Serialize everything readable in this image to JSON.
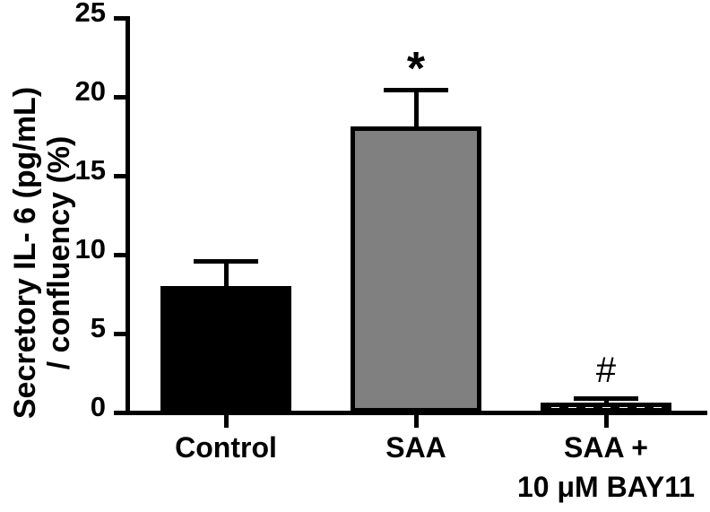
{
  "chart_data": {
    "type": "bar",
    "title": "",
    "ylabel_lines": [
      "Secretory IL- 6 (pg/mL)",
      "/ confluency (%)"
    ],
    "xlabel": "",
    "ylim": [
      0,
      25
    ],
    "yticks": [
      0,
      5,
      10,
      15,
      20,
      25
    ],
    "grid": false,
    "legend": false,
    "categories": [
      "Control",
      "SAA",
      "SAA + 10 μM BAY11"
    ],
    "category_label_lines": [
      [
        "Control"
      ],
      [
        "SAA"
      ],
      [
        "SAA +",
        "10 μM BAY11"
      ]
    ],
    "values": [
      8.0,
      18.1,
      0.6
    ],
    "errors_upper": [
      1.6,
      2.3,
      0.3
    ],
    "annotations": [
      "",
      "*",
      "#"
    ],
    "bar_slugs": [
      "control",
      "saa",
      "saa-bay11"
    ],
    "bar_styles": [
      {
        "fill": "#000000",
        "border": "#000000",
        "pattern": "solid"
      },
      {
        "fill": "#808080",
        "border": "#000000",
        "pattern": "solid"
      },
      {
        "fill": "#000000",
        "border": "#000000",
        "pattern": "white-dots"
      }
    ],
    "colors": {
      "axis": "#000000",
      "background": "#ffffff",
      "dot": "#ffffff"
    }
  }
}
